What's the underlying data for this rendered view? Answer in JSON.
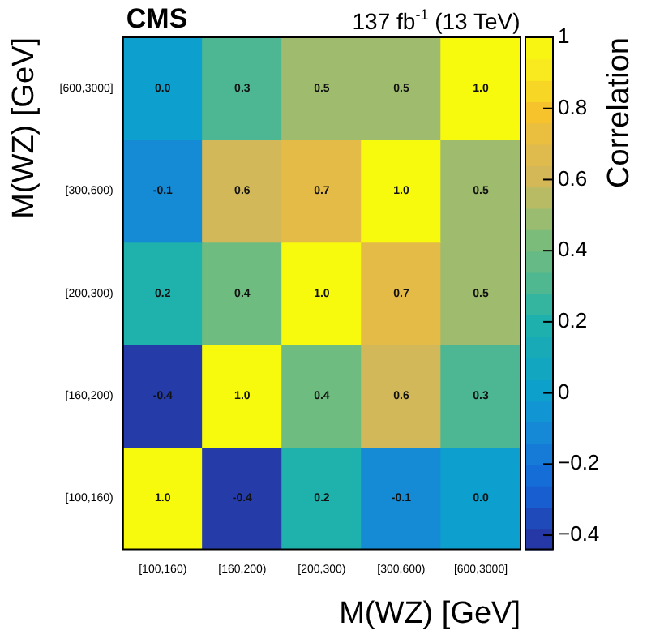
{
  "chart_data": {
    "type": "heatmap",
    "title": "CMS",
    "subtitle": "137 fb$^{-1}$ (13 TeV)",
    "xlabel": "M(WZ) [GeV]",
    "ylabel": "M(WZ) [GeV]",
    "clabel": "Correlation",
    "categories": [
      "[100,160)",
      "[160,200)",
      "[200,300)",
      "[300,600)",
      "[600,3000]"
    ],
    "y_categories": [
      "[600,3000]",
      "[300,600)",
      "[200,300)",
      "[160,200)",
      "[100,160)"
    ],
    "cells": [
      [
        0.0,
        0.3,
        0.5,
        0.5,
        1.0
      ],
      [
        -0.1,
        0.6,
        0.7,
        1.0,
        0.5
      ],
      [
        0.2,
        0.4,
        1.0,
        0.7,
        0.5
      ],
      [
        -0.4,
        1.0,
        0.4,
        0.6,
        0.3
      ],
      [
        1.0,
        -0.4,
        0.2,
        -0.1,
        0.0
      ]
    ],
    "cell_labels": [
      [
        "0.0",
        "0.3",
        "0.5",
        "0.5",
        "1.0"
      ],
      [
        "-0.1",
        "0.6",
        "0.7",
        "1.0",
        "0.5"
      ],
      [
        "0.2",
        "0.4",
        "1.0",
        "0.7",
        "0.5"
      ],
      [
        "-0.4",
        "1.0",
        "0.4",
        "0.6",
        "0.3"
      ],
      [
        "1.0",
        "-0.4",
        "0.2",
        "-0.1",
        "0.0"
      ]
    ],
    "clim": [
      -0.44,
      1
    ],
    "cticks": [
      {
        "value": -0.4,
        "label": "−0.4"
      },
      {
        "value": -0.2,
        "label": "−0.2"
      },
      0,
      0.2,
      0.4,
      0.6,
      0.8,
      1
    ]
  }
}
